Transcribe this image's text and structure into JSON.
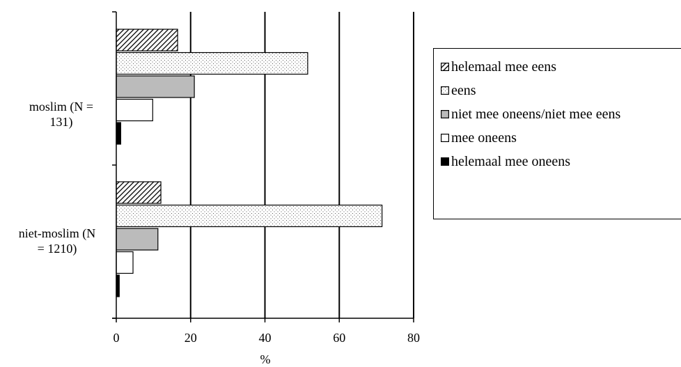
{
  "chart_data": {
    "type": "bar",
    "orientation": "horizontal",
    "categories": [
      "moslim (N = 131)",
      "niet-moslim (N = 1210)"
    ],
    "series": [
      {
        "name": "helemaal mee eens",
        "values": [
          16.5,
          12
        ],
        "pattern": "diagonal-hatch",
        "color": "#000000"
      },
      {
        "name": "eens",
        "values": [
          51.5,
          71.5
        ],
        "pattern": "dots",
        "color": "#000000"
      },
      {
        "name": "niet mee oneens/niet mee eens",
        "values": [
          21,
          11.2
        ],
        "pattern": "solid",
        "color": "#bbbbbb"
      },
      {
        "name": "mee oneens",
        "values": [
          9.8,
          4.5
        ],
        "pattern": "solid",
        "color": "#ffffff"
      },
      {
        "name": "helemaal mee oneens",
        "values": [
          1.2,
          0.8
        ],
        "pattern": "solid",
        "color": "#000000"
      }
    ],
    "xlabel": "%",
    "xlim": [
      0,
      80
    ],
    "xticks": [
      0,
      20,
      40,
      60,
      80
    ],
    "grid": "vertical",
    "legend_position": "right"
  },
  "category_labels": {
    "moslim": {
      "line1": "moslim (N =",
      "line2": "131)"
    },
    "niet_moslim": {
      "line1": "niet-moslim (N",
      "line2": "= 1210)"
    }
  }
}
